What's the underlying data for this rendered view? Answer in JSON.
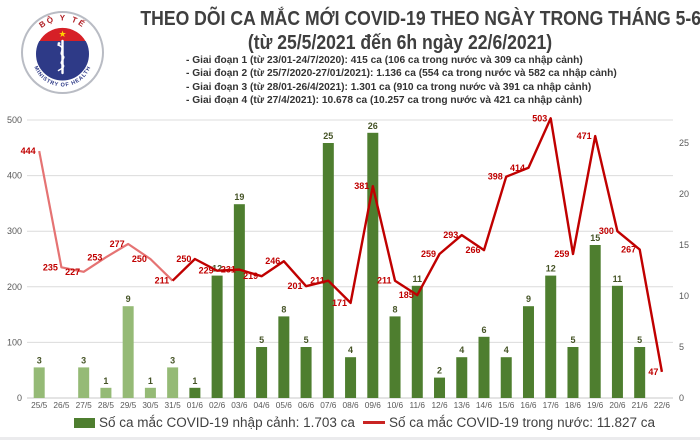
{
  "header": {
    "logo": {
      "top_text": "BỘ Y TẾ",
      "bottom_text": "MINISTRY OF HEALTH"
    },
    "title_line1": "THEO DÕI CA MẮC MỚI COVID-19 THEO NGÀY TRONG THÁNG 5-6/2021",
    "title_line2": "(từ 25/5/2021 đến 6h ngày 22/6/2021)",
    "bullets": [
      "- Giai đoạn 1 (từ 23/01-24/7/2020): 415 ca (106 ca trong nước và 309 ca nhập cảnh)",
      "- Giai đoạn 2 (từ 25/7/2020-27/01/2021): 1.136 ca (554 ca trong nước và 582 ca nhập cảnh)",
      "- Giai đoạn 3 (từ 28/01-26/4/2021): 1.301 ca (910 ca trong nước và 391 ca nhập cảnh)",
      "- Giai đoạn 4 (từ 27/4/2021): 10.678 ca (10.257 ca trong nước và 421 ca nhập cảnh)"
    ]
  },
  "chart_data": {
    "type": "bar+line combo, dual axis",
    "categories": [
      "25/5",
      "26/5",
      "27/5",
      "28/5",
      "29/5",
      "30/5",
      "31/5",
      "01/6",
      "02/6",
      "03/6",
      "04/6",
      "05/6",
      "06/6",
      "07/6",
      "08/6",
      "09/6",
      "10/6",
      "11/6",
      "12/6",
      "13/6",
      "14/6",
      "15/6",
      "16/6",
      "17/6",
      "18/6",
      "19/6",
      "20/6",
      "21/6",
      "22/6"
    ],
    "series": [
      {
        "name": "Số ca mắc COVID-19 nhập cảnh",
        "type": "bar",
        "axis": "right",
        "values": [
          3,
          0,
          3,
          1,
          9,
          1,
          3,
          1,
          12,
          19,
          5,
          8,
          5,
          25,
          4,
          26,
          8,
          11,
          2,
          4,
          6,
          4,
          9,
          12,
          5,
          15,
          11,
          5,
          0
        ],
        "color_may": "#95ba76",
        "color_june": "#4e7e2f"
      },
      {
        "name": "Số ca mắc COVID-19 trong nước",
        "type": "line",
        "axis": "left",
        "values": [
          444,
          235,
          227,
          253,
          277,
          250,
          211,
          250,
          229,
          231,
          219,
          246,
          201,
          211,
          171,
          381,
          211,
          185,
          259,
          293,
          266,
          398,
          414,
          503,
          259,
          471,
          300,
          267,
          47
        ],
        "color_may": "#e57373",
        "color_june": "#c00000"
      }
    ],
    "left_axis": {
      "ticks": [
        0,
        100,
        200,
        300,
        400,
        500
      ],
      "max": 500
    },
    "right_axis": {
      "ticks": [
        0,
        5,
        10,
        15,
        20,
        25
      ],
      "max": 25
    },
    "grid": true,
    "legend_position": "bottom",
    "colors": {
      "bar_label": "#465427",
      "line_label": "#c00000",
      "axis_text": "#595959",
      "gridline": "#dcdcdc",
      "baseline": "#c8c8c8"
    }
  },
  "legend": {
    "bar": {
      "label": "Số ca mắc COVID-19 nhập cảnh: 1.703 ca",
      "swatch_color": "#4e7e2f"
    },
    "line": {
      "label": "Số ca mắc COVID-19 trong nước: 11.827 ca",
      "swatch_color": "#c92423"
    }
  }
}
